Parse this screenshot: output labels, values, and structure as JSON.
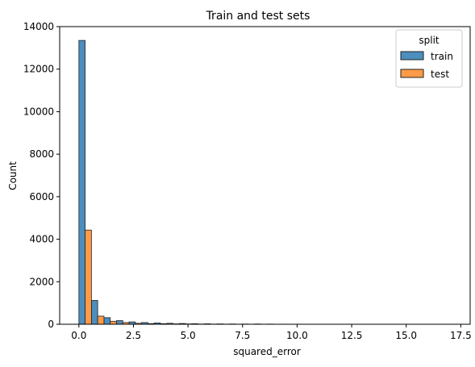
{
  "chart_data": {
    "type": "bar",
    "title": "Train and test sets",
    "xlabel": "squared_error",
    "ylabel": "Count",
    "xlim": [
      -0.88,
      17.93
    ],
    "ylim": [
      0,
      14000
    ],
    "x_ticks": [
      {
        "value": 0,
        "label": "0.0"
      },
      {
        "value": 2.5,
        "label": "2.5"
      },
      {
        "value": 5,
        "label": "5.0"
      },
      {
        "value": 7.5,
        "label": "7.5"
      },
      {
        "value": 10,
        "label": "10.0"
      },
      {
        "value": 12.5,
        "label": "12.5"
      },
      {
        "value": 15,
        "label": "15.0"
      },
      {
        "value": 17.5,
        "label": "17.5"
      }
    ],
    "y_ticks": [
      {
        "value": 0,
        "label": "0"
      },
      {
        "value": 2000,
        "label": "2000"
      },
      {
        "value": 4000,
        "label": "4000"
      },
      {
        "value": 6000,
        "label": "6000"
      },
      {
        "value": 8000,
        "label": "8000"
      },
      {
        "value": 10000,
        "label": "10000"
      },
      {
        "value": 12000,
        "label": "12000"
      },
      {
        "value": 14000,
        "label": "14000"
      }
    ],
    "grid": false,
    "bin_width": 0.575,
    "bin_starts": [
      0,
      0.575,
      1.15,
      1.725,
      2.3,
      2.875,
      3.45,
      4.025,
      4.6,
      5.175,
      5.75,
      6.325,
      6.9,
      7.475,
      8.05,
      8.625,
      9.2,
      9.775,
      10.35,
      10.925,
      11.5,
      12.075,
      12.65,
      13.225,
      13.8,
      14.375,
      14.95,
      15.525,
      16.1,
      16.675,
      17.25
    ],
    "series": [
      {
        "name": "train",
        "color": "#4c8ebd",
        "values": [
          13350,
          1120,
          310,
          170,
          110,
          80,
          60,
          45,
          35,
          25,
          20,
          15,
          12,
          10,
          12,
          8,
          5,
          4,
          3,
          3,
          2,
          2,
          1,
          1,
          1,
          1,
          1,
          1,
          1,
          1,
          1
        ]
      },
      {
        "name": "test",
        "color": "#ff9b47",
        "values": [
          4430,
          380,
          140,
          80,
          45,
          30,
          25,
          18,
          14,
          10,
          8,
          6,
          5,
          4,
          4,
          3,
          2,
          2,
          1,
          1,
          1,
          1,
          0,
          0,
          0,
          0,
          0,
          0,
          0,
          0,
          0
        ]
      }
    ],
    "legend": {
      "title": "split",
      "placement": "top-right",
      "entries": [
        "train",
        "test"
      ]
    }
  }
}
